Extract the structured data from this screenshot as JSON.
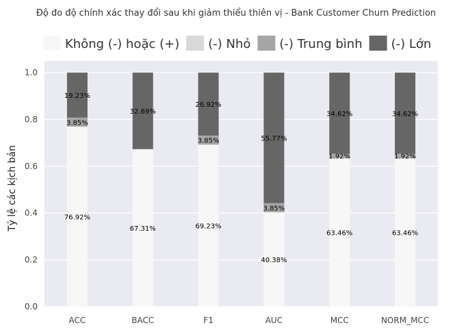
{
  "chart_data": {
    "type": "bar",
    "stacked": true,
    "title": "Độ đo độ chính xác thay đổi sau khi giảm thiểu thiên vị - Bank Customer Churn Prediction",
    "xlabel": "",
    "ylabel": "Tỷ lệ các kịch bản",
    "ylim": [
      0,
      1.05
    ],
    "yticks": [
      "0.0",
      "0.2",
      "0.4",
      "0.6",
      "0.8",
      "1.0"
    ],
    "categories": [
      "ACC",
      "BACC",
      "F1",
      "AUC",
      "MCC",
      "NORM_MCC"
    ],
    "series": [
      {
        "name": "Không (-) hoặc (+)",
        "color": "#f7f7f7",
        "values": [
          0.7692,
          0.6731,
          0.6923,
          0.4038,
          0.6346,
          0.6346
        ],
        "labels": [
          "76.92%",
          "67.31%",
          "69.23%",
          "40.38%",
          "63.46%",
          "63.46%"
        ]
      },
      {
        "name": "(-) Nhỏ",
        "color": "#d9d9d9",
        "values": [
          0,
          0,
          0,
          0,
          0,
          0
        ],
        "labels": [
          "",
          "",
          "",
          "",
          "",
          ""
        ]
      },
      {
        "name": "(-) Trung bình",
        "color": "#a6a6a6",
        "values": [
          0.0385,
          0,
          0.0385,
          0.0385,
          0.0192,
          0.0192
        ],
        "labels": [
          "3.85%",
          "",
          "3.85%",
          "3.85%",
          "1.92%",
          "1.92%"
        ]
      },
      {
        "name": "(-) Lớn",
        "color": "#666666",
        "values": [
          0.1923,
          0.3269,
          0.2692,
          0.5577,
          0.3462,
          0.3462
        ],
        "labels": [
          "19.23%",
          "32.69%",
          "26.92%",
          "55.77%",
          "34.62%",
          "34.62%"
        ]
      }
    ],
    "legend_position": "top",
    "grid": true,
    "background": "#eaeaf2"
  }
}
